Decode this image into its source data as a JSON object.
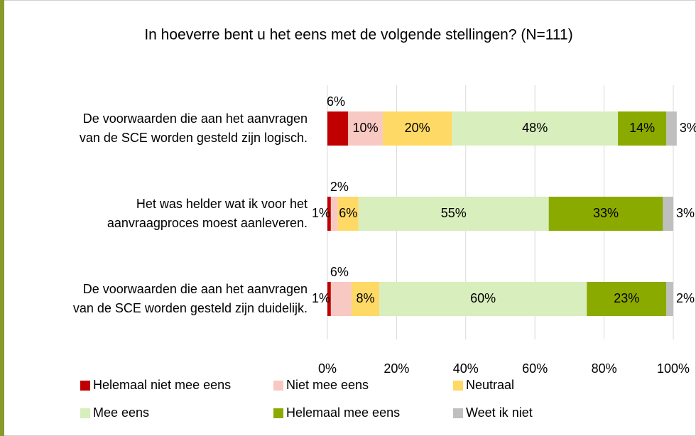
{
  "chart_data": {
    "type": "stacked-bar-horizontal",
    "title": "In hoeverre bent u het eens met de volgende stellingen? (N=111)",
    "categories": [
      [
        "De voorwaarden die aan het aanvragen",
        "van de SCE worden gesteld zijn logisch."
      ],
      [
        "Het was helder wat ik voor het",
        "aanvraagproces moest aanleveren."
      ],
      [
        "De voorwaarden die aan het aanvragen",
        "van de SCE worden gesteld zijn duidelijk."
      ]
    ],
    "series": [
      {
        "name": "Helemaal niet mee eens",
        "color": "#c00000",
        "values": [
          6,
          1,
          1
        ],
        "value_labels": [
          "6%",
          "1%",
          "1%"
        ]
      },
      {
        "name": "Niet mee eens",
        "color": "#f8c8c2",
        "values": [
          10,
          2,
          6
        ],
        "value_labels": [
          "10%",
          "2%",
          "6%"
        ]
      },
      {
        "name": "Neutraal",
        "color": "#ffd966",
        "values": [
          20,
          6,
          8
        ],
        "value_labels": [
          "20%",
          "6%",
          "8%"
        ]
      },
      {
        "name": "Mee eens",
        "color": "#d8eebd",
        "values": [
          48,
          55,
          60
        ],
        "value_labels": [
          "48%",
          "55%",
          "60%"
        ]
      },
      {
        "name": "Helemaal mee eens",
        "color": "#8aaa00",
        "values": [
          14,
          33,
          23
        ],
        "value_labels": [
          "14%",
          "33%",
          "23%"
        ]
      },
      {
        "name": "Weet ik niet",
        "color": "#bfbfbf",
        "values": [
          3,
          3,
          2
        ],
        "value_labels": [
          "3%",
          "3%",
          "2%"
        ]
      }
    ],
    "xlim": [
      0,
      100
    ],
    "xticks": [
      {
        "value": 0,
        "label": "0%"
      },
      {
        "value": 20,
        "label": "20%"
      },
      {
        "value": 40,
        "label": "40%"
      },
      {
        "value": 60,
        "label": "60%"
      },
      {
        "value": 80,
        "label": "80%"
      },
      {
        "value": 100,
        "label": "100%"
      }
    ],
    "grid": true
  }
}
